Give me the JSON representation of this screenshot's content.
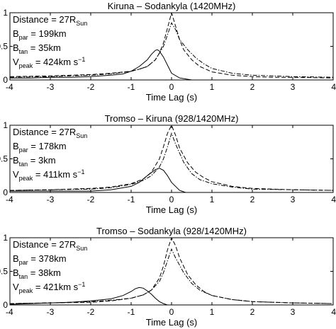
{
  "chart_data": [
    {
      "type": "line",
      "title": "Kiruna – Sodankyla (1420MHz)",
      "xlabel": "Time Lag (s)",
      "ylabel": "",
      "xlim": [
        -4,
        4
      ],
      "ylim": [
        0,
        1
      ],
      "xticks": [
        "-4",
        "-3",
        "-2",
        "-1",
        "0",
        "1",
        "2",
        "3",
        "4"
      ],
      "yticks": [
        "0",
        "0.5",
        "1"
      ],
      "grid": false,
      "annotation": {
        "distance_label": "Distance = 27R",
        "distance_sub": "Sun",
        "bpar_label": "B",
        "bpar_sub": "par",
        "bpar_value": " = 199km",
        "btan_label": "B",
        "btan_sub": "tan",
        "btan_value": " = 35km",
        "vpeak_label": "V",
        "vpeak_sub": "peak",
        "vpeak_value": " = 424km s",
        "vpeak_exp": "−1"
      },
      "series": [
        {
          "style": "solid",
          "x": [
            -4,
            -3.5,
            -3,
            -2.5,
            -2,
            -1.5,
            -1.2,
            -1.0,
            -0.8,
            -0.6,
            -0.5,
            -0.4,
            -0.35,
            -0.3,
            -0.2,
            -0.1,
            0,
            0.2,
            0.5,
            1,
            1.5,
            2,
            2.5,
            3,
            3.5,
            4
          ],
          "y": [
            0.03,
            0.03,
            0.04,
            0.04,
            0.05,
            0.07,
            0.09,
            0.13,
            0.2,
            0.3,
            0.38,
            0.44,
            0.45,
            0.43,
            0.34,
            0.22,
            0.1,
            0.03,
            0.0,
            -0.02,
            -0.02,
            -0.02,
            -0.02,
            -0.02,
            -0.02,
            -0.02
          ]
        },
        {
          "style": "dashed",
          "x": [
            -4,
            -3,
            -2,
            -1.5,
            -1,
            -0.8,
            -0.6,
            -0.4,
            -0.3,
            -0.2,
            -0.1,
            0,
            0.1,
            0.2,
            0.3,
            0.5,
            0.7,
            1,
            1.5,
            2,
            2.5,
            3,
            4
          ],
          "y": [
            0.05,
            0.06,
            0.08,
            0.1,
            0.13,
            0.16,
            0.2,
            0.3,
            0.4,
            0.55,
            0.77,
            1.0,
            0.8,
            0.6,
            0.45,
            0.3,
            0.2,
            0.12,
            0.07,
            0.05,
            0.04,
            0.04,
            0.03
          ]
        },
        {
          "style": "dashdot",
          "x": [
            -4,
            -3,
            -2,
            -1.5,
            -1,
            -0.8,
            -0.6,
            -0.4,
            -0.2,
            -0.1,
            0,
            0.1,
            0.2,
            0.4,
            0.6,
            0.8,
            1,
            1.5,
            2,
            3,
            4
          ],
          "y": [
            0.04,
            0.05,
            0.07,
            0.09,
            0.13,
            0.16,
            0.2,
            0.3,
            0.5,
            0.67,
            0.85,
            0.75,
            0.6,
            0.45,
            0.33,
            0.24,
            0.17,
            0.1,
            0.07,
            0.05,
            0.04
          ]
        }
      ]
    },
    {
      "type": "line",
      "title": "Tromso – Kiruna (928/1420MHz)",
      "xlabel": "Time Lag (s)",
      "ylabel": "",
      "xlim": [
        -4,
        4
      ],
      "ylim": [
        0,
        1
      ],
      "xticks": [
        "-4",
        "-3",
        "-2",
        "-1",
        "0",
        "1",
        "2",
        "3",
        "4"
      ],
      "yticks": [
        "0",
        "0.5",
        "1"
      ],
      "grid": false,
      "annotation": {
        "distance_label": "Distance = 27R",
        "distance_sub": "Sun",
        "bpar_label": "B",
        "bpar_sub": "par",
        "bpar_value": " = 178km",
        "btan_label": "B",
        "btan_sub": "tan",
        "btan_value": " = 3km",
        "vpeak_label": "V",
        "vpeak_sub": "peak",
        "vpeak_value": " = 411km s",
        "vpeak_exp": "−1"
      },
      "series": [
        {
          "style": "solid",
          "x": [
            -4,
            -3,
            -2,
            -1.5,
            -1.0,
            -0.8,
            -0.6,
            -0.4,
            -0.3,
            -0.2,
            -0.1,
            0,
            0.2,
            0.5,
            1,
            1.5,
            2,
            3,
            4
          ],
          "y": [
            0.02,
            0.02,
            0.02,
            0.04,
            0.09,
            0.15,
            0.25,
            0.34,
            0.36,
            0.33,
            0.25,
            0.15,
            0.03,
            -0.03,
            -0.05,
            -0.05,
            -0.05,
            -0.05,
            -0.05
          ]
        },
        {
          "style": "dashed",
          "x": [
            -4,
            -3,
            -2,
            -1.5,
            -1,
            -0.7,
            -0.5,
            -0.3,
            -0.2,
            -0.1,
            0,
            0.1,
            0.2,
            0.4,
            0.6,
            0.8,
            1,
            1.5,
            2,
            3,
            4
          ],
          "y": [
            0.03,
            0.04,
            0.06,
            0.08,
            0.13,
            0.2,
            0.3,
            0.5,
            0.68,
            0.88,
            1.0,
            0.85,
            0.66,
            0.44,
            0.3,
            0.22,
            0.16,
            0.09,
            0.06,
            0.04,
            0.03
          ]
        },
        {
          "style": "dashdot",
          "x": [
            -4,
            -3,
            -2,
            -1.5,
            -1,
            -0.7,
            -0.5,
            -0.3,
            -0.2,
            -0.1,
            0,
            0.1,
            0.3,
            0.5,
            0.7,
            1,
            1.5,
            2,
            3,
            4
          ],
          "y": [
            0.03,
            0.04,
            0.05,
            0.07,
            0.12,
            0.18,
            0.25,
            0.38,
            0.5,
            0.68,
            0.88,
            0.72,
            0.45,
            0.28,
            0.19,
            0.13,
            0.08,
            0.05,
            0.04,
            0.03
          ]
        }
      ]
    },
    {
      "type": "line",
      "title": "Tromso – Sodankyla (928/1420MHz)",
      "xlabel": "Time Lag (s)",
      "ylabel": "",
      "xlim": [
        -4,
        4
      ],
      "ylim": [
        0,
        1
      ],
      "xticks": [
        "-4",
        "-3",
        "-2",
        "-1",
        "0",
        "1",
        "2",
        "3",
        "4"
      ],
      "yticks": [
        "0",
        "0.5",
        "1"
      ],
      "grid": false,
      "annotation": {
        "distance_label": "Distance = 27R",
        "distance_sub": "Sun",
        "bpar_label": "B",
        "bpar_sub": "par",
        "bpar_value": " = 378km",
        "btan_label": "B",
        "btan_sub": "tan",
        "btan_value": " = 38km",
        "vpeak_label": "V",
        "vpeak_sub": "peak",
        "vpeak_value": " = 421km s",
        "vpeak_exp": "−1"
      },
      "series": [
        {
          "style": "solid",
          "x": [
            -4,
            -3.5,
            -3,
            -2.5,
            -2,
            -1.5,
            -1.2,
            -1.0,
            -0.9,
            -0.8,
            -0.7,
            -0.6,
            -0.5,
            -0.4,
            -0.3,
            -0.2,
            -0.1,
            0,
            0.2,
            0.5,
            1,
            1.5,
            2,
            3,
            4
          ],
          "y": [
            0.01,
            0.02,
            0.03,
            0.04,
            0.06,
            0.09,
            0.14,
            0.2,
            0.24,
            0.26,
            0.25,
            0.21,
            0.16,
            0.1,
            0.05,
            0.02,
            0.0,
            -0.01,
            -0.01,
            0.0,
            0.0,
            0.0,
            -0.01,
            -0.02,
            -0.02
          ]
        },
        {
          "style": "dashed",
          "x": [
            -4,
            -3,
            -2,
            -1.5,
            -1,
            -0.7,
            -0.5,
            -0.3,
            -0.2,
            -0.1,
            0,
            0.1,
            0.2,
            0.4,
            0.6,
            0.8,
            1,
            1.5,
            2,
            3,
            4
          ],
          "y": [
            0.02,
            0.03,
            0.04,
            0.06,
            0.1,
            0.15,
            0.22,
            0.4,
            0.58,
            0.82,
            1.0,
            0.88,
            0.7,
            0.45,
            0.3,
            0.2,
            0.14,
            0.08,
            0.05,
            0.03,
            0.02
          ]
        },
        {
          "style": "dashdot",
          "x": [
            -4,
            -3,
            -2,
            -1.5,
            -1,
            -0.7,
            -0.5,
            -0.3,
            -0.2,
            -0.1,
            0,
            0.1,
            0.3,
            0.5,
            0.7,
            1,
            1.5,
            2,
            3,
            4
          ],
          "y": [
            0.02,
            0.03,
            0.05,
            0.07,
            0.1,
            0.15,
            0.22,
            0.35,
            0.48,
            0.66,
            0.83,
            0.7,
            0.48,
            0.32,
            0.22,
            0.14,
            0.08,
            0.05,
            0.03,
            0.02
          ]
        }
      ]
    }
  ]
}
